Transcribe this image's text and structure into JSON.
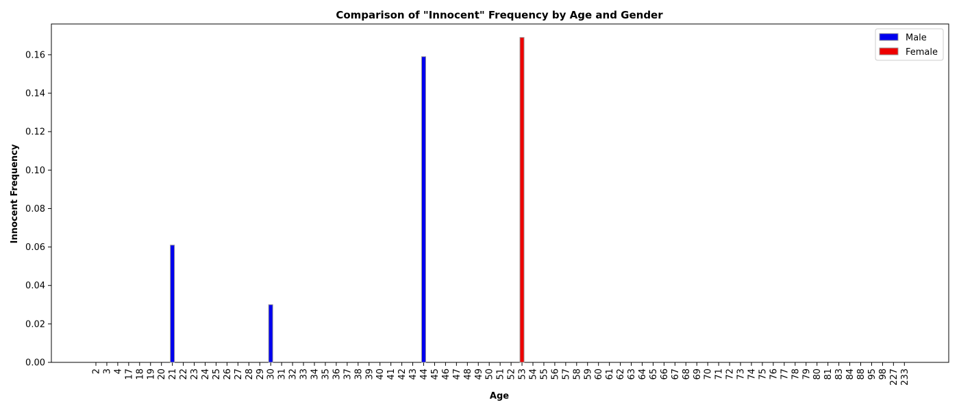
{
  "chart_data": {
    "type": "bar",
    "title": "Comparison of \"Innocent\" Frequency by Age and Gender",
    "xlabel": "Age",
    "ylabel": "Innocent Frequency",
    "ylim": [
      0,
      0.176
    ],
    "yticks": [
      "0.00",
      "0.02",
      "0.04",
      "0.06",
      "0.08",
      "0.10",
      "0.12",
      "0.14",
      "0.16"
    ],
    "categories": [
      "2",
      "3",
      "4",
      "17",
      "18",
      "19",
      "20",
      "21",
      "22",
      "23",
      "24",
      "25",
      "26",
      "27",
      "28",
      "29",
      "30",
      "31",
      "32",
      "33",
      "34",
      "35",
      "36",
      "37",
      "38",
      "39",
      "40",
      "41",
      "42",
      "43",
      "44",
      "45",
      "46",
      "47",
      "48",
      "49",
      "50",
      "51",
      "52",
      "53",
      "54",
      "55",
      "56",
      "57",
      "58",
      "59",
      "60",
      "61",
      "62",
      "63",
      "64",
      "65",
      "66",
      "67",
      "68",
      "69",
      "70",
      "71",
      "72",
      "73",
      "74",
      "75",
      "76",
      "77",
      "78",
      "79",
      "80",
      "81",
      "83",
      "84",
      "88",
      "95",
      "98",
      "227",
      "233"
    ],
    "series": [
      {
        "name": "Male",
        "color": "#0000ee",
        "values": {
          "21": 0.061,
          "30": 0.03,
          "44": 0.159
        }
      },
      {
        "name": "Female",
        "color": "#ee0000",
        "values": {
          "53": 0.169
        }
      }
    ],
    "legend_position": "top-right",
    "grid": false
  }
}
